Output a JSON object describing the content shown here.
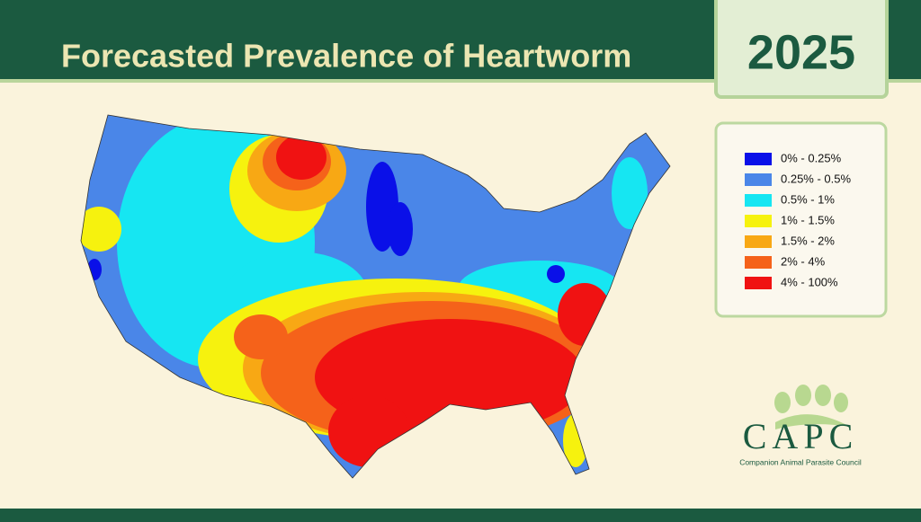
{
  "header": {
    "title": "Forecasted Prevalence of Heartworm",
    "year": "2025"
  },
  "legend": [
    {
      "label": "0% - 0.25%",
      "color": "#0a10e8"
    },
    {
      "label": "0.25% - 0.5%",
      "color": "#4a86e8"
    },
    {
      "label": "0.5% - 1%",
      "color": "#16e6f2"
    },
    {
      "label": "1% - 1.5%",
      "color": "#f6f20e"
    },
    {
      "label": "1.5% - 2%",
      "color": "#f8a814"
    },
    {
      "label": "2% - 4%",
      "color": "#f5621a"
    },
    {
      "label": "4% - 100%",
      "color": "#f01212"
    }
  ],
  "logo": {
    "name": "CAPC",
    "tagline": "Companion Animal Parasite Council"
  }
}
